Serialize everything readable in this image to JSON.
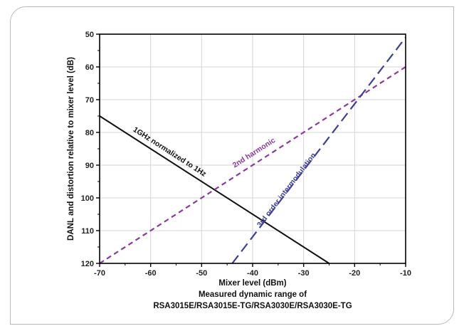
{
  "chart_data": {
    "type": "line",
    "title": "",
    "xlabel": "Mixer level (dBm)",
    "ylabel": "DANL and distortion relative to mixer level (dB)",
    "caption_lines": [
      "Measured dynamic range of",
      "RSA3015E/RSA3015E-TG/RSA3030E/RSA3030E-TG"
    ],
    "xlim": [
      -70,
      -10
    ],
    "ylim": [
      50,
      120
    ],
    "y_inverted": true,
    "x_ticks": [
      -70,
      -60,
      -50,
      -40,
      -30,
      -20,
      -10
    ],
    "y_ticks": [
      50,
      60,
      70,
      80,
      90,
      100,
      110,
      120
    ],
    "grid": true,
    "series": [
      {
        "name": "1GHz normalized to 1Hz",
        "color": "#111111",
        "dash": "solid",
        "x": [
          -70,
          -25
        ],
        "y": [
          75,
          120
        ]
      },
      {
        "name": "2nd harmonic",
        "color": "#8a3a9e",
        "dash": "short-dash",
        "x": [
          -70,
          -10
        ],
        "y": [
          120,
          60
        ]
      },
      {
        "name": "3rd order intermodulation",
        "color": "#3f3f9a",
        "dash": "long-dash",
        "x": [
          -44,
          -10
        ],
        "y": [
          120,
          51
        ]
      }
    ]
  }
}
